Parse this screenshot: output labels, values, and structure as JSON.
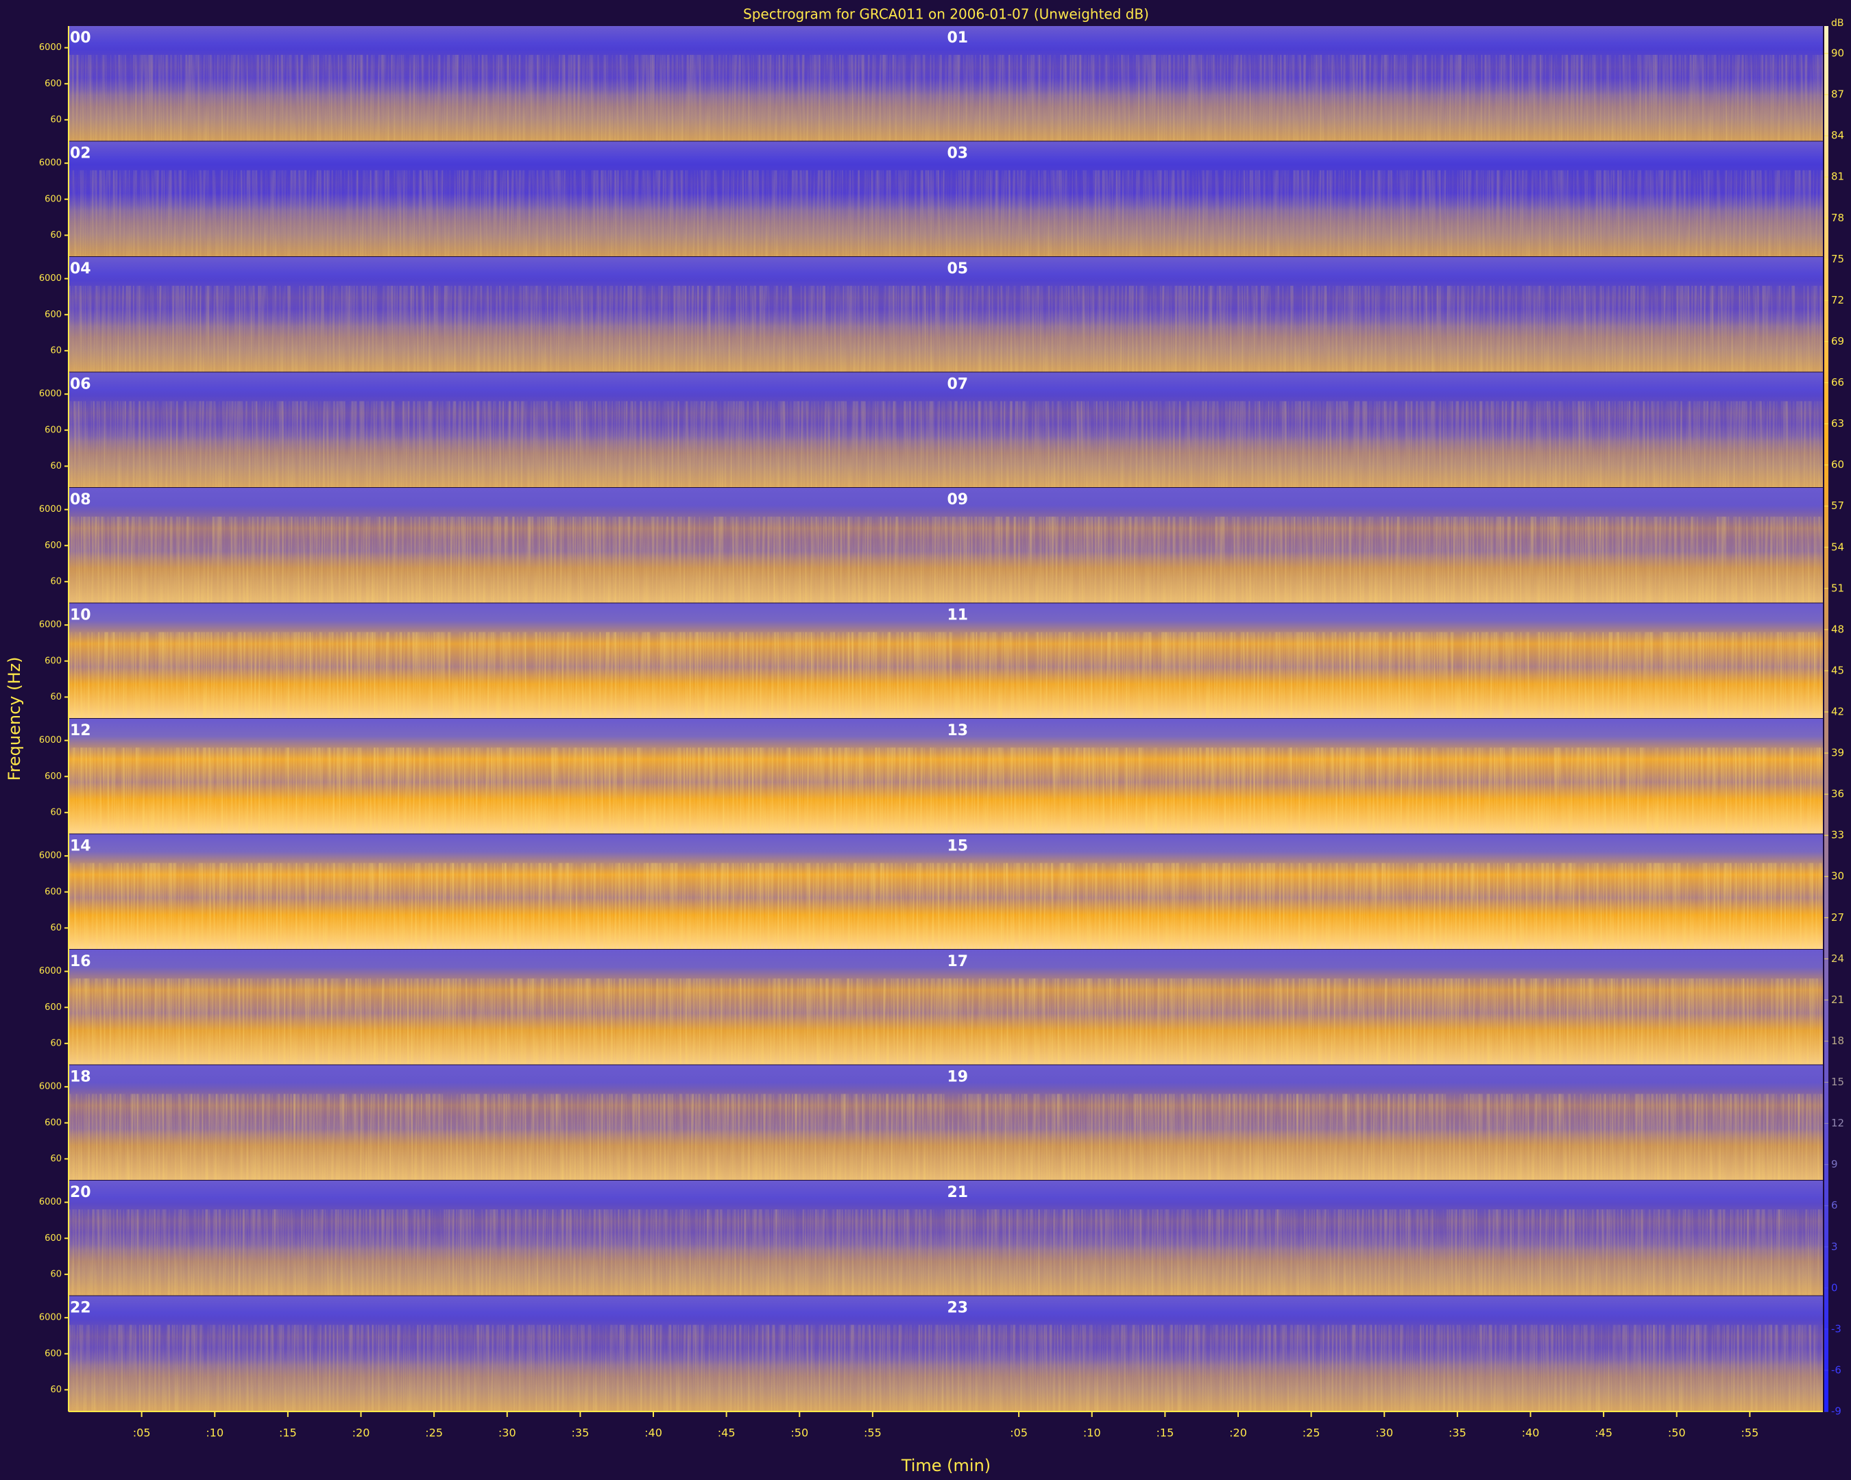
{
  "chart_data": {
    "type": "spectrogram",
    "title": "Spectrogram for GRCA011 on 2006-01-07 (Unweighted dB)",
    "xlabel": "Time (min)",
    "ylabel": "Frequency (Hz)",
    "panels": [
      "00",
      "01",
      "02",
      "03",
      "04",
      "05",
      "06",
      "07",
      "08",
      "09",
      "10",
      "11",
      "12",
      "13",
      "14",
      "15",
      "16",
      "17",
      "18",
      "19",
      "20",
      "21",
      "22",
      "23"
    ],
    "xlim": [
      0,
      60
    ],
    "xticks": [
      {
        "value": 5,
        "label": ":05"
      },
      {
        "value": 10,
        "label": ":10"
      },
      {
        "value": 15,
        "label": ":15"
      },
      {
        "value": 20,
        "label": ":20"
      },
      {
        "value": 25,
        "label": ":25"
      },
      {
        "value": 30,
        "label": ":30"
      },
      {
        "value": 35,
        "label": ":35"
      },
      {
        "value": 40,
        "label": ":40"
      },
      {
        "value": 45,
        "label": ":45"
      },
      {
        "value": 50,
        "label": ":50"
      },
      {
        "value": 55,
        "label": ":55"
      }
    ],
    "yscale": "log",
    "ylim": [
      15,
      24000
    ],
    "yticks": [
      60,
      600,
      6000
    ],
    "colorbar_label": "dB",
    "clim": [
      -9,
      92
    ],
    "cticks": [
      90,
      87,
      84,
      81,
      78,
      75,
      72,
      69,
      66,
      63,
      60,
      57,
      54,
      51,
      48,
      45,
      42,
      39,
      36,
      33,
      30,
      27,
      24,
      21,
      18,
      15,
      12,
      9,
      6,
      3,
      0,
      -3,
      -6,
      -9
    ]
  }
}
